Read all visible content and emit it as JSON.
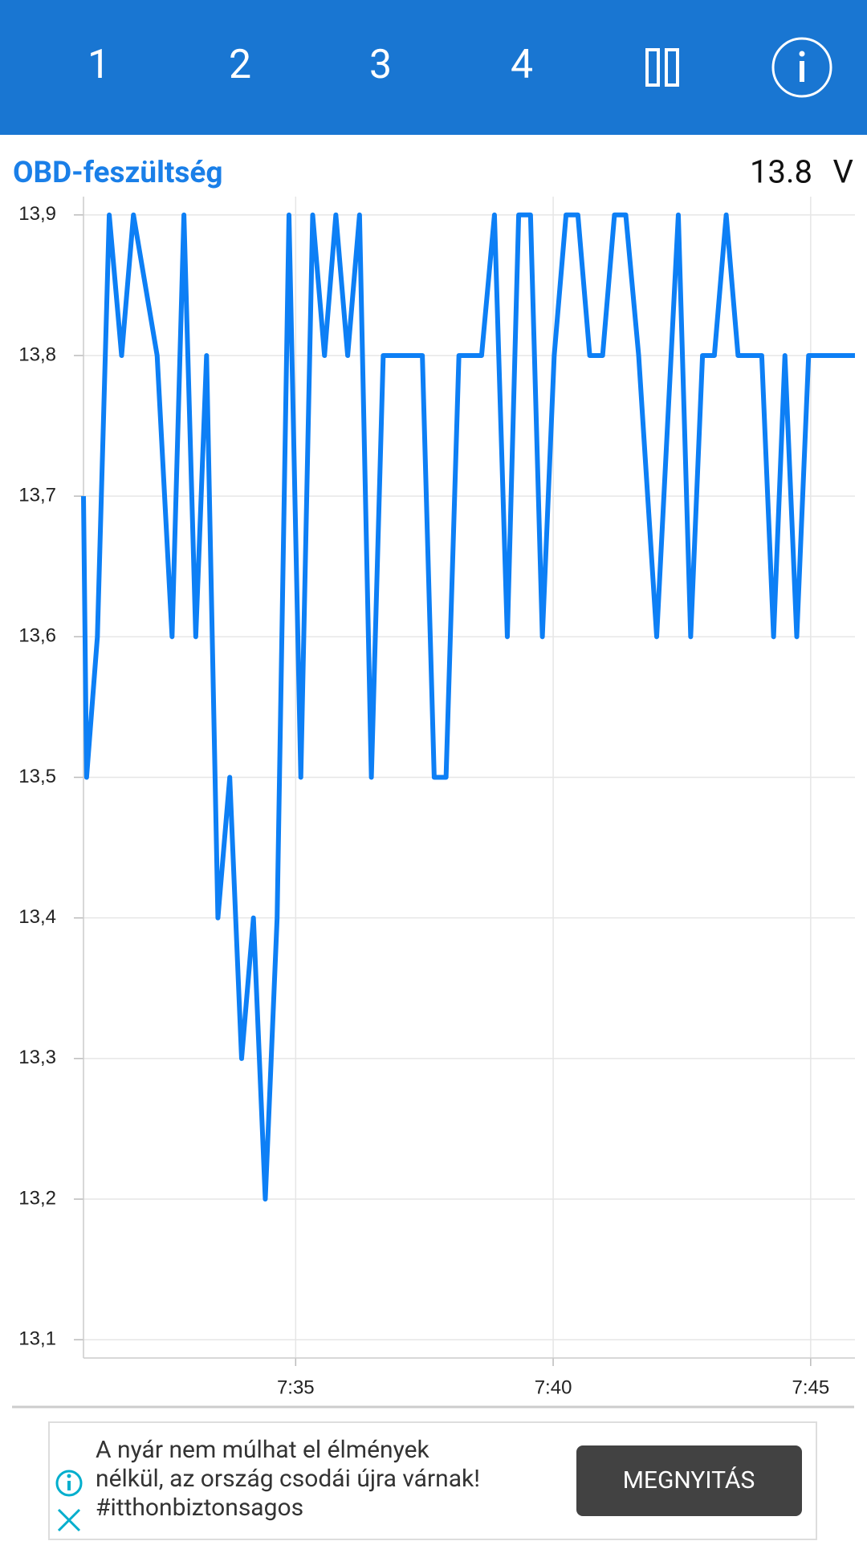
{
  "toolbar": {
    "tabs": [
      "1",
      "2",
      "3",
      "4"
    ]
  },
  "panel": {
    "title": "OBD-feszültség",
    "reading": "13.8",
    "unit": "V"
  },
  "chart_data": {
    "type": "line",
    "x": [
      450.88,
      450.94,
      451.15,
      451.38,
      451.62,
      451.85,
      452.31,
      452.6,
      452.83,
      453.06,
      453.27,
      453.49,
      453.72,
      453.95,
      454.18,
      454.41,
      454.64,
      454.87,
      455.1,
      455.33,
      455.56,
      455.78,
      456.01,
      456.24,
      456.47,
      456.7,
      457.46,
      457.69,
      457.92,
      458.17,
      458.61,
      458.86,
      459.11,
      459.33,
      459.56,
      459.79,
      460.02,
      460.25,
      460.48,
      460.71,
      460.96,
      461.19,
      461.41,
      461.66,
      462.01,
      462.43,
      462.67,
      462.9,
      463.13,
      463.36,
      463.59,
      464.05,
      464.28,
      464.5,
      464.73,
      464.96,
      465.86
    ],
    "series": [
      {
        "color": "#0d7ff5",
        "values": [
          13.7,
          13.5,
          13.6,
          13.9,
          13.8,
          13.9,
          13.8,
          13.6,
          13.9,
          13.6,
          13.8,
          13.4,
          13.5,
          13.3,
          13.4,
          13.2,
          13.4,
          13.9,
          13.5,
          13.9,
          13.8,
          13.9,
          13.8,
          13.9,
          13.5,
          13.8,
          13.8,
          13.5,
          13.5,
          13.8,
          13.8,
          13.9,
          13.6,
          13.9,
          13.9,
          13.6,
          13.8,
          13.9,
          13.9,
          13.8,
          13.8,
          13.9,
          13.9,
          13.8,
          13.6,
          13.9,
          13.6,
          13.8,
          13.8,
          13.9,
          13.8,
          13.8,
          13.6,
          13.8,
          13.6,
          13.8,
          13.8
        ]
      }
    ],
    "xlim": [
      450.88,
      465.86
    ],
    "xticks": [
      {
        "value": 455,
        "label": "7:35"
      },
      {
        "value": 460,
        "label": "7:40"
      },
      {
        "value": 465,
        "label": "7:45"
      }
    ],
    "ylim": [
      13.087,
      13.913
    ],
    "yticks": [
      {
        "value": 13.1,
        "label": "13,1"
      },
      {
        "value": 13.2,
        "label": "13,2"
      },
      {
        "value": 13.3,
        "label": "13,3"
      },
      {
        "value": 13.4,
        "label": "13,4"
      },
      {
        "value": 13.5,
        "label": "13,5"
      },
      {
        "value": 13.6,
        "label": "13,6"
      },
      {
        "value": 13.7,
        "label": "13,7"
      },
      {
        "value": 13.8,
        "label": "13,8"
      },
      {
        "value": 13.9,
        "label": "13,9"
      }
    ],
    "grid": true
  },
  "ad": {
    "lines": [
      "A nyár nem múlhat el élmények",
      "nélkül, az ország csodái újra várnak!",
      "#itthonbiztonsagos"
    ],
    "button": "MEGNYITÁS"
  }
}
